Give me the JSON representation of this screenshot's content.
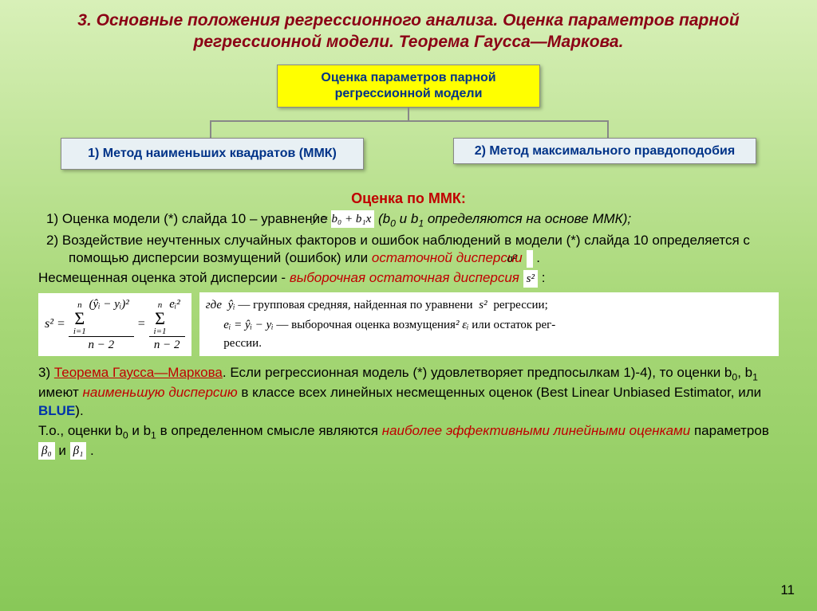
{
  "slide": {
    "background_gradient": [
      "#d8f0b8",
      "#a8d878",
      "#88c858"
    ],
    "title": "3. Основные положения регрессионного анализа. Оценка параметров парной регрессионной модели. Теорема Гаусса—Маркова.",
    "title_color": "#8b0015",
    "page_number": "11"
  },
  "diagram": {
    "top_box": "Оценка параметров парной регрессионной модели",
    "top_box_bg": "#ffff00",
    "left_box": "1) Метод наименьших квадратов (ММК)",
    "right_box": "2) Метод максимального правдоподобия",
    "child_box_bg": "#e8f0f4",
    "box_text_color": "#003388"
  },
  "section": {
    "heading": "Оценка по ММК:",
    "heading_color": "#c00000",
    "item1_lead": "1)",
    "item1_a": "Оценка модели (*) слайда 10 – уравнение",
    "item1_formula": "ŷ = b₀ + b₁x",
    "item1_b_open": "(b",
    "item1_b_mid": " и b",
    "item1_b_end": " определяются на основе ММК);",
    "item2_lead": "2)",
    "item2_a": "Воздействие неучтенных случайных факторов и ошибок наблюдений в модели (*) слайда 10 определяется с помощью дисперсии возмущений (ошибок) или",
    "item2_b": "остаточной дисперсии",
    "sigma2": "σ²",
    "unbiased_a": "Несмещенная оценка этой дисперсии - ",
    "unbiased_b": "выборочная остаточная дисперсия",
    "s2": "s²",
    "colon": " :"
  },
  "formula": {
    "lhs": "s² =",
    "sum_top": "n",
    "sum_bot": "i=1",
    "num1": "(ŷᵢ − yᵢ)²",
    "num2": "eᵢ²",
    "denom": "n − 2",
    "eq": "=",
    "def_where": "где",
    "def1_sym": "ŷᵢ",
    "def1_txt": " — групповая средняя, найденная по уравнени",
    "def1_tail": " регрессии;",
    "def2_sym": "eᵢ = ŷᵢ − yᵢ",
    "def2_txt": " — выборочная оценка возмущения",
    "def2_eps": "² εᵢ",
    "def2_tail": " или остаток рег-",
    "def3": "рессии."
  },
  "theorem": {
    "lead": "3) ",
    "name": "Теорема Гаусса—Маркова",
    "p1_a": ". Если регрессионная модель (*) удовлетворяет предпосылкам 1)-4), то оценки b",
    "p1_b": ", b",
    "p1_c": " имеют ",
    "p1_red": "наименьшую дисперсию",
    "p1_d": " в классе всех линейных несмещенных оценок (Best Linear Unbiased Estimator, или ",
    "blue": "BLUE",
    "p1_e": ").",
    "p2_a": "Т.о., оценки b",
    "p2_b": " и b",
    "p2_c": " в определенном смысле являются ",
    "p2_red": "наиболее эффективными линейными оценками",
    "p2_d": " параметров ",
    "beta0": "β₀",
    "and": " и ",
    "beta1": "β₁",
    "dot": " ."
  }
}
